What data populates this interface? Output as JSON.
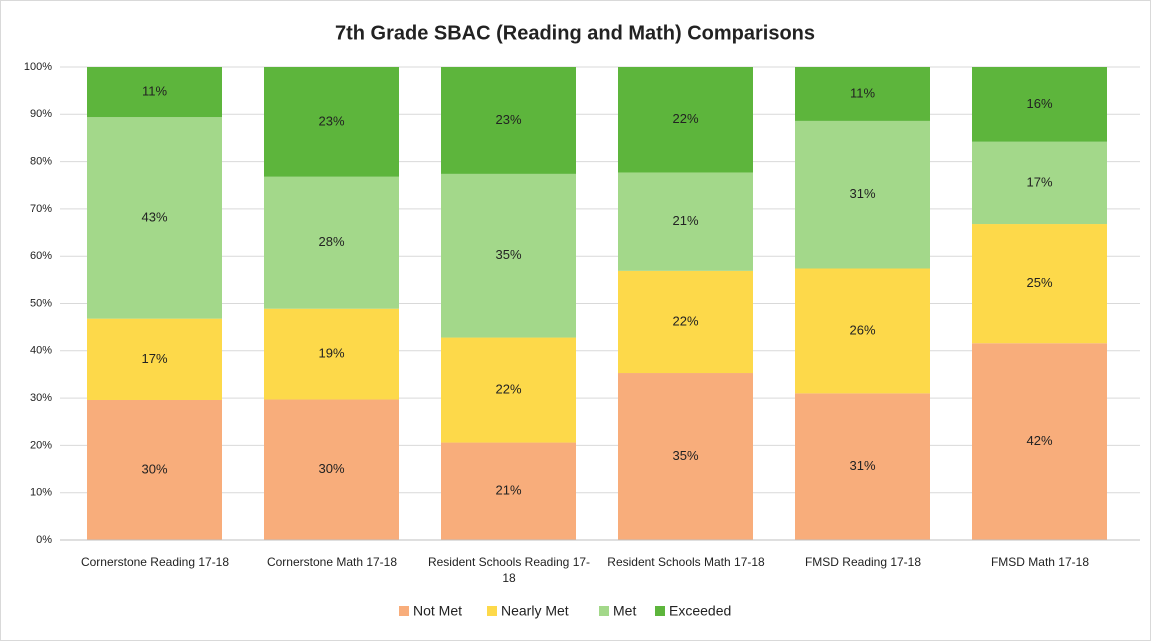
{
  "chart_data": {
    "type": "stacked_bar",
    "title": "7th Grade SBAC (Reading and Math) Comparisons",
    "categories": [
      "Cornerstone Reading 17-18",
      "Cornerstone Math 17-18",
      "Resident Schools Reading 17-18",
      "Resident Schools Math 17-18",
      "FMSD Reading 17-18",
      "FMSD Math 17-18"
    ],
    "series": [
      {
        "name": "Not Met",
        "color": "#f8ad7b",
        "values": [
          29.6,
          29.7,
          20.6,
          35.3,
          31.0,
          41.6
        ],
        "value_labels": [
          "30%",
          "30%",
          "21%",
          "35%",
          "31%",
          "42%"
        ]
      },
      {
        "name": "Nearly Met",
        "color": "#fdd94a",
        "values": [
          17.2,
          19.2,
          22.2,
          21.6,
          26.4,
          25.2
        ],
        "value_labels": [
          "17%",
          "19%",
          "22%",
          "22%",
          "26%",
          "25%"
        ]
      },
      {
        "name": "Met",
        "color": "#a3d88a",
        "values": [
          42.6,
          27.9,
          34.6,
          20.8,
          31.2,
          17.4
        ],
        "value_labels": [
          "43%",
          "28%",
          "35%",
          "21%",
          "31%",
          "17%"
        ]
      },
      {
        "name": "Exceeded",
        "color": "#5db53c",
        "values": [
          10.6,
          23.2,
          22.6,
          22.3,
          11.4,
          15.8
        ],
        "value_labels": [
          "11%",
          "23%",
          "23%",
          "22%",
          "11%",
          "16%"
        ]
      }
    ],
    "ylim": [
      0,
      100
    ],
    "yticks": [
      {
        "value": 0,
        "label": "0%"
      },
      {
        "value": 10,
        "label": "10%"
      },
      {
        "value": 20,
        "label": "20%"
      },
      {
        "value": 30,
        "label": "30%"
      },
      {
        "value": 40,
        "label": "40%"
      },
      {
        "value": 50,
        "label": "50%"
      },
      {
        "value": 60,
        "label": "60%"
      },
      {
        "value": 70,
        "label": "70%"
      },
      {
        "value": 80,
        "label": "80%"
      },
      {
        "value": 90,
        "label": "90%"
      },
      {
        "value": 100,
        "label": "100%"
      }
    ],
    "grid": true,
    "legend": "bottom"
  }
}
